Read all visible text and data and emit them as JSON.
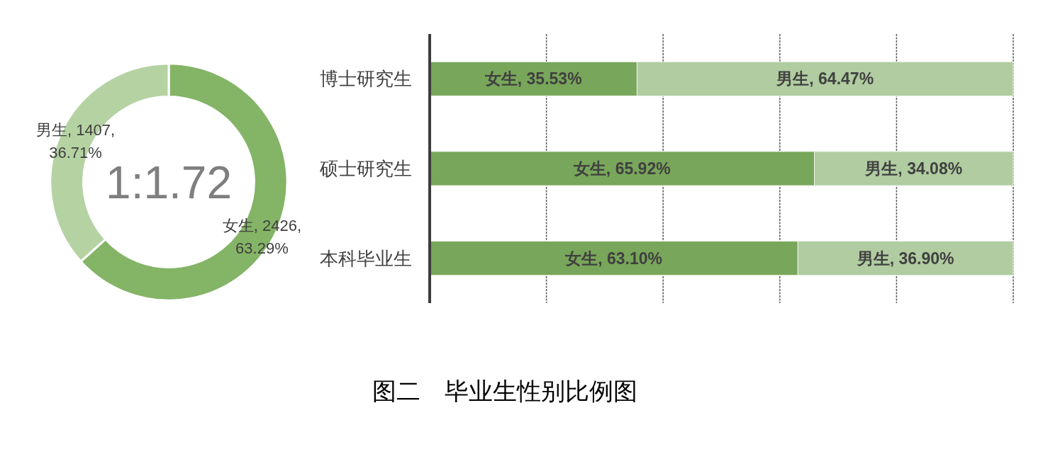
{
  "chart_data": [
    {
      "type": "donut",
      "categories": [
        "女生",
        "男生"
      ],
      "values": [
        2426,
        1407
      ],
      "colors": [
        "#84b466",
        "#b5d3a2"
      ],
      "value_labels": [
        "2426, 63.29%",
        "1407, 36.71%"
      ],
      "annotations": [
        "1:1.72"
      ]
    },
    {
      "type": "bar",
      "orientation": "horizontal",
      "stacked": true,
      "categories": [
        "博士研究生",
        "硕士研究生",
        "本科毕业生"
      ],
      "series": [
        {
          "color": "#78a65a",
          "values": [
            35.53,
            65.92,
            63.1
          ],
          "value_labels": [
            "女生, 35.53%",
            "女生, 65.92%",
            "女生, 63.10%"
          ]
        },
        {
          "color": "#b0cca0",
          "values": [
            64.47,
            34.08,
            36.9
          ],
          "value_labels": [
            "男生, 64.47%",
            "男生, 34.08%",
            "男生, 36.90%"
          ]
        }
      ],
      "xlim": [
        0,
        100
      ],
      "xticks": [
        {
          "value": 0,
          "label": null
        },
        {
          "value": 20,
          "label": null
        },
        {
          "value": 40,
          "label": null
        },
        {
          "value": 60,
          "label": null
        },
        {
          "value": 80,
          "label": null
        },
        {
          "value": 100,
          "label": null
        }
      ],
      "grid": "x",
      "tick_labels": "y"
    },
    {
      "type": "other",
      "title": "图二　毕业生性别比例图"
    }
  ]
}
